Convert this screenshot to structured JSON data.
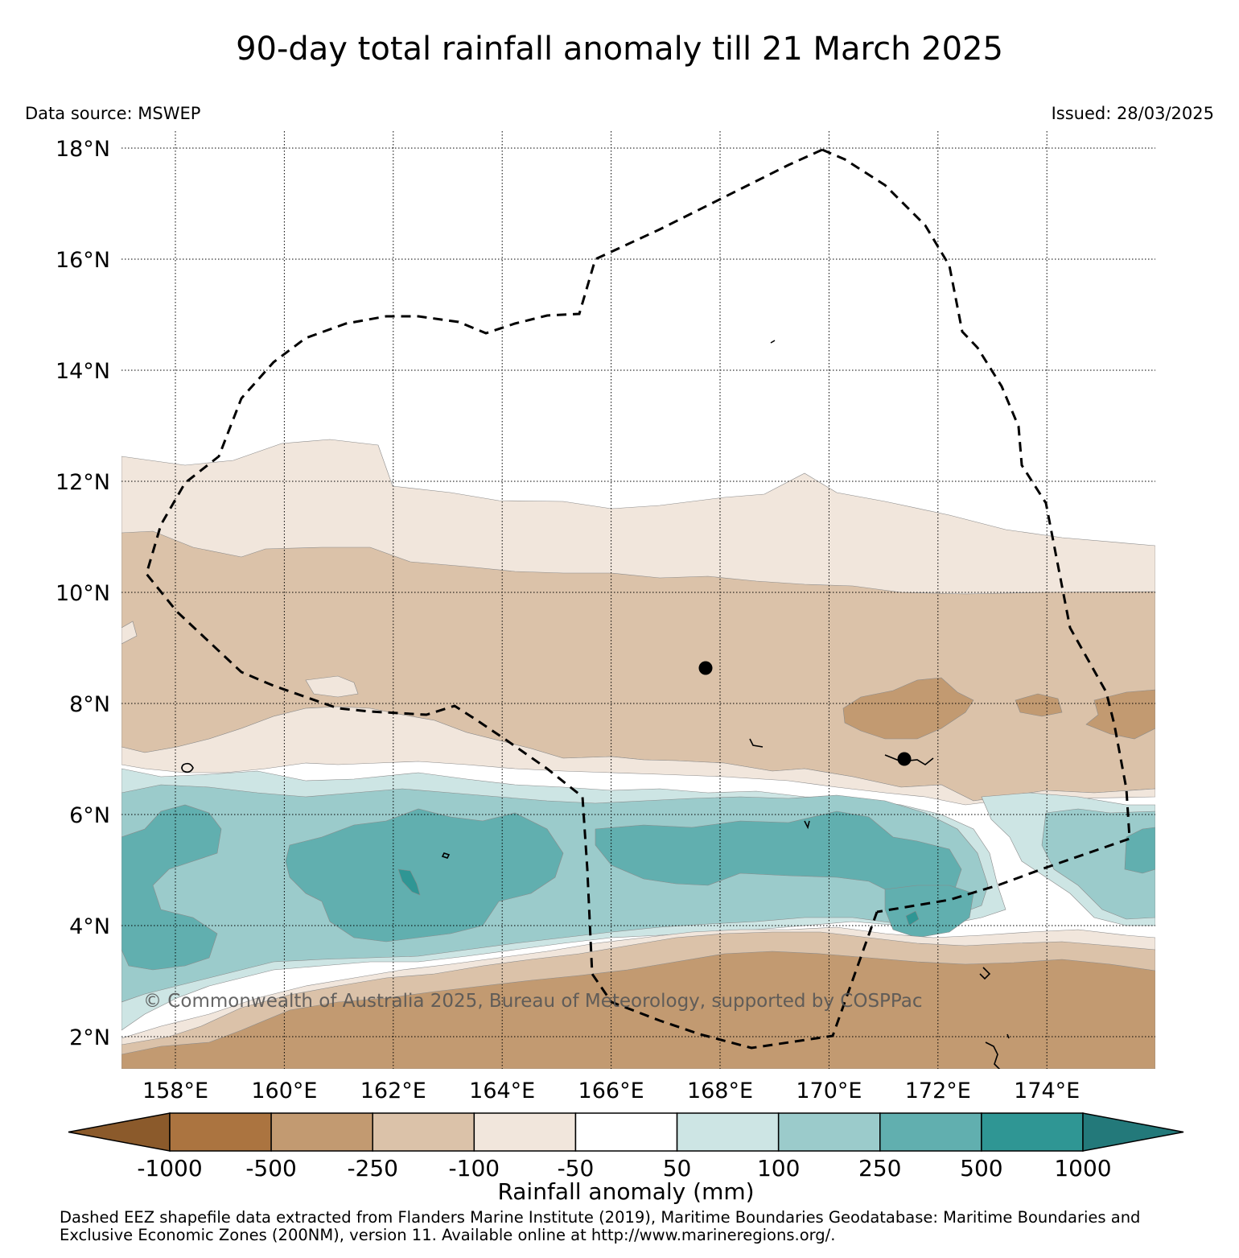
{
  "title": "90-day total rainfall anomaly till 21 March 2025",
  "data_source": "Data source: MSWEP",
  "issued": "Issued: 28/03/2025",
  "watermark": "© Commonwealth of Australia 2025, Bureau of Meteorology, supported by COSPPac",
  "map": {
    "lon_range": [
      157.0,
      176.0
    ],
    "lat_range": [
      1.5,
      18.3
    ],
    "lon_ticks": [
      "158°E",
      "160°E",
      "162°E",
      "164°E",
      "166°E",
      "168°E",
      "170°E",
      "172°E",
      "174°E"
    ],
    "lat_ticks": [
      "18°N",
      "16°N",
      "14°N",
      "12°N",
      "10°N",
      "8°N",
      "6°N",
      "4°N",
      "2°N"
    ],
    "gridlines": "dotted",
    "eez_boundary": "dashed",
    "markers": [
      "station",
      "station"
    ]
  },
  "colorbar": {
    "title": "Rainfall anomaly (mm)",
    "labels": [
      "-1000",
      "-500",
      "-250",
      "-100",
      "-50",
      "50",
      "100",
      "250",
      "500",
      "1000"
    ],
    "colors": [
      "#8b5a2b",
      "#ab7440",
      "#c29a71",
      "#dbc2a9",
      "#f1e6dc",
      "#ffffff",
      "#cde5e4",
      "#9bcbcb",
      "#61afaf",
      "#2f9694",
      "#23797a"
    ]
  },
  "footnote": "Dashed EEZ shapefile data extracted from Flanders Marine Institute (2019), Maritime Boundaries Geodatabase: Maritime Boundaries and Exclusive Economic Zones (200NM), version 11. Available online at http://www.marineregions.org/."
}
